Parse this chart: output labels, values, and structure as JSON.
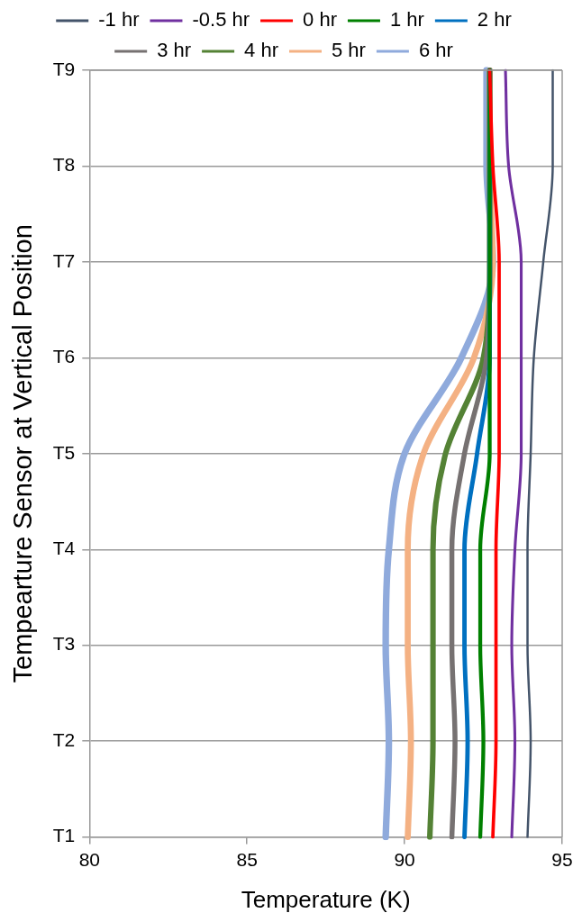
{
  "chart_data": {
    "type": "line",
    "orientation": "horizontal",
    "xlabel": "Temperature (K)",
    "ylabel": "Tempearture Sensor at Vertical Position",
    "categories": [
      "T9",
      "T8",
      "T7",
      "T6",
      "T5",
      "T4",
      "T3",
      "T2",
      "T1"
    ],
    "xlim": [
      80,
      95
    ],
    "xticks": [
      80,
      85,
      90,
      95
    ],
    "grid": "y",
    "legend": "top",
    "marker": "none",
    "line_style": "solid",
    "series": [
      {
        "name": "-1 hr",
        "color": "#44546a",
        "values": [
          94.7,
          94.7,
          94.4,
          94.1,
          94.0,
          93.9,
          93.9,
          94.0,
          93.9
        ]
      },
      {
        "name": "-0.5 hr",
        "color": "#7030a0",
        "values": [
          93.2,
          93.3,
          93.7,
          93.7,
          93.7,
          93.5,
          93.4,
          93.5,
          93.4
        ]
      },
      {
        "name": "0 hr",
        "color": "#ff0000",
        "values": [
          92.7,
          92.8,
          93.0,
          93.0,
          93.0,
          92.9,
          92.9,
          92.9,
          92.8
        ]
      },
      {
        "name": "1 hr",
        "color": "#008000",
        "values": [
          92.7,
          92.7,
          92.7,
          92.7,
          92.7,
          92.4,
          92.4,
          92.5,
          92.4
        ]
      },
      {
        "name": "2 hr",
        "color": "#0070c0",
        "values": [
          92.7,
          92.7,
          92.7,
          92.7,
          92.3,
          91.9,
          91.9,
          92.0,
          91.9
        ]
      },
      {
        "name": "3 hr",
        "color": "#767171",
        "values": [
          92.7,
          92.7,
          92.7,
          92.6,
          91.9,
          91.5,
          91.5,
          91.6,
          91.5
        ]
      },
      {
        "name": "4 hr",
        "color": "#548235",
        "values": [
          92.7,
          92.7,
          92.7,
          92.5,
          91.3,
          90.9,
          90.9,
          90.9,
          90.8
        ]
      },
      {
        "name": "5 hr",
        "color": "#f4b183",
        "values": [
          92.7,
          92.7,
          92.8,
          92.2,
          90.6,
          90.1,
          90.1,
          90.2,
          90.1
        ]
      },
      {
        "name": "6 hr",
        "color": "#8faadc",
        "values": [
          92.6,
          92.6,
          92.8,
          91.8,
          90.0,
          89.5,
          89.4,
          89.5,
          89.4
        ]
      }
    ]
  }
}
